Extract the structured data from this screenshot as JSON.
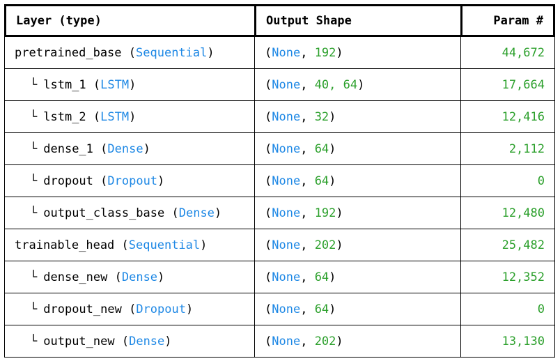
{
  "headers": {
    "layer": "Layer (type)",
    "output_shape": "Output Shape",
    "params": "Param #"
  },
  "colors": {
    "type": "#1e88e5",
    "number": "#2ca02c"
  },
  "rows": [
    {
      "indent": false,
      "name": "pretrained_base",
      "type": "Sequential",
      "shape_none": "None",
      "shape_dims": "192",
      "params": "44,672"
    },
    {
      "indent": true,
      "tree": "└",
      "name": "lstm_1",
      "type": "LSTM",
      "shape_none": "None",
      "shape_dims": "40, 64",
      "params": "17,664"
    },
    {
      "indent": true,
      "tree": "└",
      "name": "lstm_2",
      "type": "LSTM",
      "shape_none": "None",
      "shape_dims": "32",
      "params": "12,416"
    },
    {
      "indent": true,
      "tree": "└",
      "name": "dense_1",
      "type": "Dense",
      "shape_none": "None",
      "shape_dims": "64",
      "params": "2,112"
    },
    {
      "indent": true,
      "tree": "└",
      "name": "dropout",
      "type": "Dropout",
      "shape_none": "None",
      "shape_dims": "64",
      "params": "0"
    },
    {
      "indent": true,
      "tree": "└",
      "name": "output_class_base",
      "type": "Dense",
      "shape_none": "None",
      "shape_dims": "192",
      "params": "12,480"
    },
    {
      "indent": false,
      "name": "trainable_head",
      "type": "Sequential",
      "shape_none": "None",
      "shape_dims": "202",
      "params": "25,482"
    },
    {
      "indent": true,
      "tree": "└",
      "name": "dense_new",
      "type": "Dense",
      "shape_none": "None",
      "shape_dims": "64",
      "params": "12,352"
    },
    {
      "indent": true,
      "tree": "└",
      "name": "dropout_new",
      "type": "Dropout",
      "shape_none": "None",
      "shape_dims": "64",
      "params": "0"
    },
    {
      "indent": true,
      "tree": "└",
      "name": "output_new",
      "type": "Dense",
      "shape_none": "None",
      "shape_dims": "202",
      "params": "13,130"
    }
  ]
}
